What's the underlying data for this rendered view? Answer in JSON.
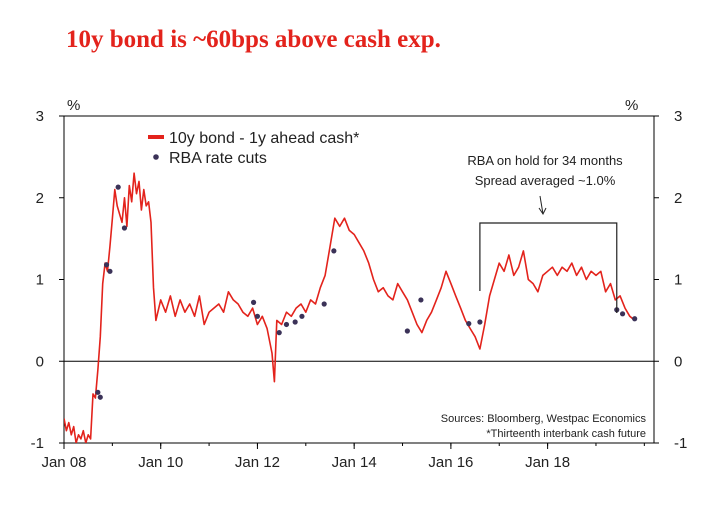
{
  "title": "10y bond is ~60bps above cash exp.",
  "colors": {
    "series": "#e3231c",
    "markers": "#3b3258",
    "axis": "#000000",
    "title": "#e3231c"
  },
  "chart_data": {
    "type": "line",
    "title": "10y bond is ~60bps above cash exp.",
    "y_unit_left": "%",
    "y_unit_right": "%",
    "ylim": [
      -1,
      3
    ],
    "yticks": [
      -1,
      0,
      1,
      2,
      3
    ],
    "xlim": [
      2008.0,
      2020.2
    ],
    "xticks": [
      {
        "label": "Jan 08",
        "value": 2008
      },
      {
        "label": "Jan 10",
        "value": 2010
      },
      {
        "label": "Jan 12",
        "value": 2012
      },
      {
        "label": "Jan 14",
        "value": 2014
      },
      {
        "label": "Jan 16",
        "value": 2016
      },
      {
        "label": "Jan 18",
        "value": 2018
      }
    ],
    "series": [
      {
        "name": "10y bond - 1y ahead cash*",
        "x": [
          2008.0,
          2008.05,
          2008.1,
          2008.15,
          2008.2,
          2008.25,
          2008.3,
          2008.35,
          2008.4,
          2008.45,
          2008.5,
          2008.55,
          2008.6,
          2008.65,
          2008.7,
          2008.75,
          2008.8,
          2008.85,
          2008.9,
          2008.95,
          2009.0,
          2009.05,
          2009.1,
          2009.15,
          2009.2,
          2009.25,
          2009.3,
          2009.35,
          2009.4,
          2009.45,
          2009.5,
          2009.55,
          2009.6,
          2009.65,
          2009.7,
          2009.75,
          2009.8,
          2009.85,
          2009.9,
          2010.0,
          2010.1,
          2010.2,
          2010.3,
          2010.4,
          2010.5,
          2010.6,
          2010.7,
          2010.8,
          2010.9,
          2011.0,
          2011.1,
          2011.2,
          2011.3,
          2011.4,
          2011.5,
          2011.6,
          2011.7,
          2011.8,
          2011.9,
          2012.0,
          2012.1,
          2012.2,
          2012.3,
          2012.35,
          2012.4,
          2012.5,
          2012.6,
          2012.7,
          2012.8,
          2012.9,
          2013.0,
          2013.1,
          2013.2,
          2013.3,
          2013.4,
          2013.5,
          2013.6,
          2013.7,
          2013.8,
          2013.9,
          2014.0,
          2014.1,
          2014.2,
          2014.3,
          2014.4,
          2014.5,
          2014.6,
          2014.7,
          2014.8,
          2014.9,
          2015.0,
          2015.1,
          2015.2,
          2015.3,
          2015.4,
          2015.5,
          2015.6,
          2015.7,
          2015.8,
          2015.9,
          2016.0,
          2016.1,
          2016.2,
          2016.3,
          2016.4,
          2016.5,
          2016.6,
          2016.7,
          2016.8,
          2016.9,
          2017.0,
          2017.1,
          2017.2,
          2017.3,
          2017.4,
          2017.5,
          2017.6,
          2017.7,
          2017.8,
          2017.9,
          2018.0,
          2018.1,
          2018.2,
          2018.3,
          2018.4,
          2018.5,
          2018.6,
          2018.7,
          2018.8,
          2018.9,
          2019.0,
          2019.1,
          2019.2,
          2019.3,
          2019.4,
          2019.5,
          2019.6,
          2019.7,
          2019.8
        ],
        "values": [
          -0.7,
          -0.85,
          -0.75,
          -0.9,
          -0.8,
          -1.0,
          -0.9,
          -0.95,
          -0.85,
          -1.0,
          -0.9,
          -0.95,
          -0.4,
          -0.45,
          -0.1,
          0.3,
          0.95,
          1.2,
          1.1,
          1.4,
          1.75,
          2.1,
          1.9,
          1.8,
          1.7,
          2.0,
          1.65,
          2.15,
          1.95,
          2.3,
          2.05,
          2.2,
          1.85,
          2.1,
          1.9,
          1.95,
          1.7,
          0.9,
          0.5,
          0.75,
          0.6,
          0.8,
          0.55,
          0.75,
          0.6,
          0.7,
          0.55,
          0.8,
          0.45,
          0.6,
          0.65,
          0.7,
          0.6,
          0.85,
          0.75,
          0.7,
          0.6,
          0.55,
          0.65,
          0.45,
          0.55,
          0.4,
          0.1,
          -0.25,
          0.5,
          0.45,
          0.6,
          0.55,
          0.65,
          0.7,
          0.6,
          0.75,
          0.7,
          0.9,
          1.05,
          1.4,
          1.75,
          1.65,
          1.75,
          1.6,
          1.55,
          1.45,
          1.35,
          1.2,
          1.0,
          0.85,
          0.9,
          0.8,
          0.75,
          0.95,
          0.85,
          0.75,
          0.6,
          0.45,
          0.35,
          0.5,
          0.6,
          0.75,
          0.9,
          1.1,
          0.95,
          0.8,
          0.65,
          0.5,
          0.4,
          0.3,
          0.15,
          0.45,
          0.8,
          1.0,
          1.2,
          1.1,
          1.3,
          1.05,
          1.15,
          1.35,
          1.0,
          0.95,
          0.85,
          1.05,
          1.1,
          1.15,
          1.05,
          1.15,
          1.1,
          1.2,
          1.05,
          1.15,
          1.0,
          1.1,
          1.05,
          1.1,
          0.85,
          0.95,
          0.75,
          0.8,
          0.65,
          0.55,
          0.5
        ]
      },
      {
        "name": "RBA rate cuts",
        "type": "scatter",
        "x": [
          2008.7,
          2008.75,
          2008.88,
          2008.95,
          2009.12,
          2009.25,
          2011.92,
          2012.0,
          2012.45,
          2012.6,
          2012.78,
          2012.92,
          2013.38,
          2013.58,
          2015.1,
          2015.38,
          2016.37,
          2016.6,
          2019.43,
          2019.55,
          2019.8
        ],
        "values": [
          -0.38,
          -0.44,
          1.18,
          1.1,
          2.13,
          1.63,
          0.72,
          0.55,
          0.35,
          0.45,
          0.48,
          0.55,
          0.7,
          1.35,
          0.37,
          0.75,
          0.46,
          0.48,
          0.63,
          0.58,
          0.52
        ]
      }
    ],
    "legend": {
      "placement": "top-left",
      "entries": [
        "10y bond - 1y ahead cash*",
        "RBA rate cuts"
      ]
    },
    "annotations": [
      "RBA on hold for 34 months",
      "Spread averaged ~1.0%",
      "Sources: Bloomberg, Westpac Economics",
      "*Thirteenth interbank cash future"
    ],
    "hold_period": {
      "start": 2016.6,
      "end": 2019.43
    }
  }
}
